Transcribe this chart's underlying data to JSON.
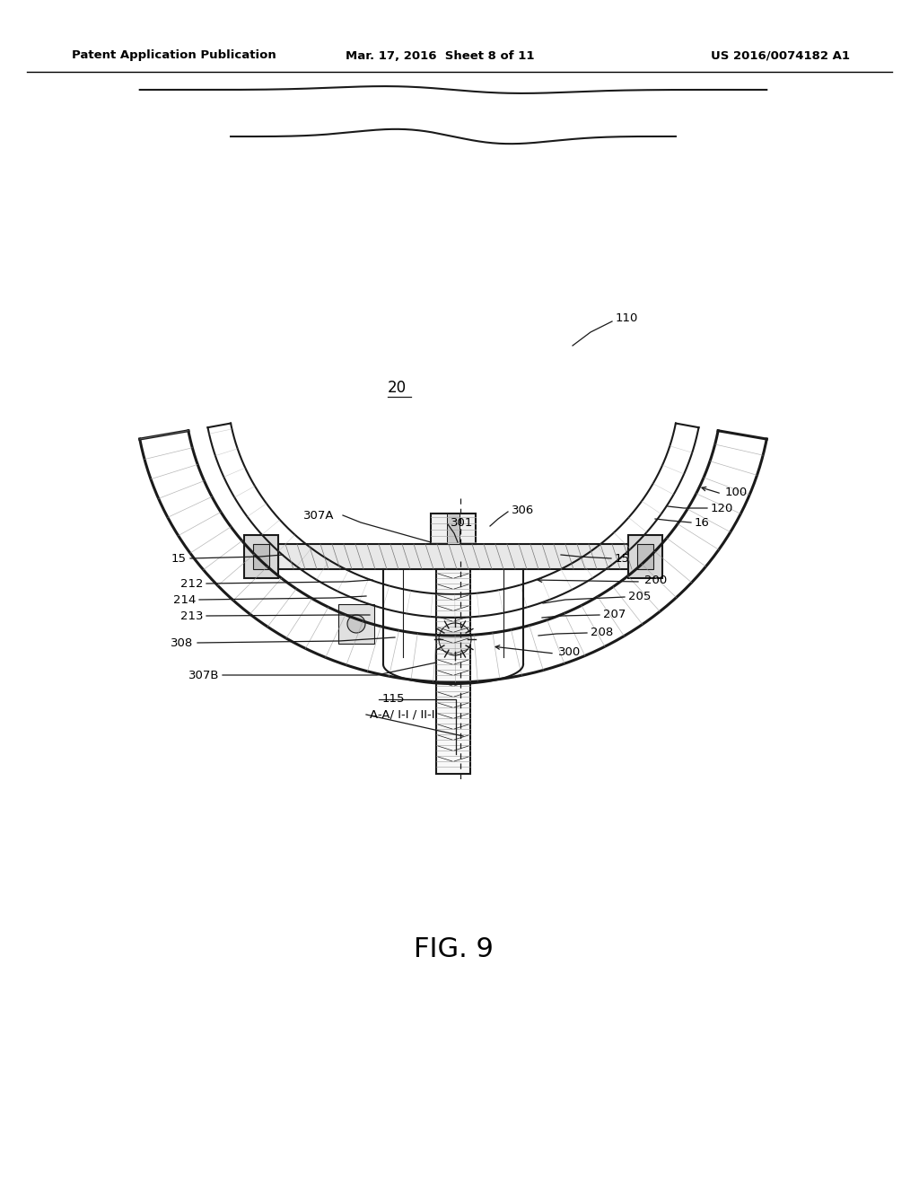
{
  "bg_color": "#ffffff",
  "header_left": "Patent Application Publication",
  "header_mid": "Mar. 17, 2016  Sheet 8 of 11",
  "header_right": "US 2016/0074182 A1",
  "fig_label": "FIG. 9",
  "line_color": "#1a1a1a"
}
